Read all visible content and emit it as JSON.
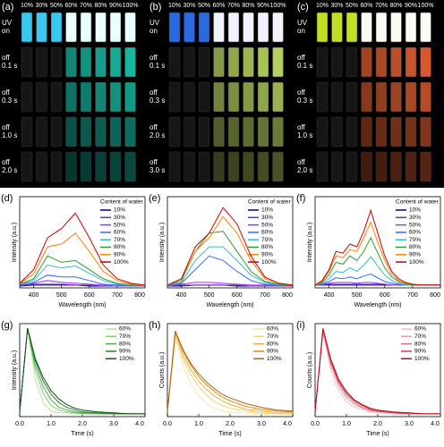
{
  "photo_panels": [
    {
      "label": "(a)",
      "columns": [
        "10%",
        "30%",
        "50%",
        "60%",
        "70%",
        "80%",
        "90%",
        "100%"
      ],
      "rows": [
        [
          "UV",
          "on"
        ],
        [
          "off",
          "0.1 s"
        ],
        [
          "off",
          "0.3 s"
        ],
        [
          "off",
          "1.0 s"
        ],
        [
          "off",
          "2.0 s"
        ]
      ]
    },
    {
      "label": "(b)",
      "columns": [
        "10%",
        "30%",
        "50%",
        "60%",
        "70%",
        "80%",
        "90%",
        "100%"
      ],
      "rows": [
        [
          "UV",
          "on"
        ],
        [
          "off",
          "0.1 s"
        ],
        [
          "off",
          "0.3 s"
        ],
        [
          "off",
          "2.0 s"
        ],
        [
          "off",
          "3.0 s"
        ]
      ]
    },
    {
      "label": "(c)",
      "columns": [
        "10%",
        "30%",
        "50%",
        "60%",
        "70%",
        "80%",
        "90%",
        "100%"
      ],
      "rows": [
        [
          "UV",
          "on"
        ],
        [
          "off",
          "0.1 s"
        ],
        [
          "off",
          "0.3 s"
        ],
        [
          "off",
          "1.0 s"
        ],
        [
          "off",
          "2.0 s"
        ]
      ]
    }
  ],
  "chart_data": [
    {
      "type": "line",
      "panel_label": "(d)",
      "x_label": "Wavelength (nm)",
      "y_label": "Intensity (a.u.)",
      "legend_title": "Content of water",
      "xlim": [
        350,
        800
      ],
      "xticks": [
        400,
        500,
        600,
        700,
        800
      ],
      "ylim": [
        0,
        100
      ],
      "x": [
        350,
        400,
        450,
        500,
        550,
        600,
        650,
        700,
        750,
        800
      ],
      "series": [
        {
          "name": "10%",
          "color": "#000080",
          "values": [
            2,
            3,
            3,
            3,
            3,
            2,
            2,
            2,
            2,
            2
          ]
        },
        {
          "name": "30%",
          "color": "#7030a0",
          "values": [
            3,
            4,
            4,
            4,
            3,
            3,
            2,
            2,
            2,
            2
          ]
        },
        {
          "name": "50%",
          "color": "#9933ff",
          "values": [
            3,
            5,
            8,
            6,
            5,
            4,
            3,
            2,
            2,
            2
          ]
        },
        {
          "name": "60%",
          "color": "#3366ff",
          "values": [
            3,
            6,
            14,
            12,
            12,
            8,
            4,
            3,
            2,
            2
          ]
        },
        {
          "name": "70%",
          "color": "#33bbcc",
          "values": [
            4,
            8,
            25,
            22,
            24,
            16,
            8,
            4,
            3,
            2
          ]
        },
        {
          "name": "80%",
          "color": "#339933",
          "values": [
            4,
            10,
            35,
            28,
            30,
            20,
            10,
            5,
            3,
            2
          ]
        },
        {
          "name": "90%",
          "color": "#ff8000",
          "values": [
            5,
            15,
            45,
            48,
            60,
            40,
            18,
            8,
            4,
            3
          ]
        },
        {
          "name": "100%",
          "color": "#cc0000",
          "values": [
            5,
            20,
            55,
            65,
            82,
            55,
            25,
            10,
            5,
            3
          ]
        }
      ]
    },
    {
      "type": "line",
      "panel_label": "(e)",
      "x_label": "Wavelength (nm)",
      "y_label": "Intensity (a.u.)",
      "legend_title": "Content of water",
      "xlim": [
        350,
        800
      ],
      "xticks": [
        400,
        500,
        600,
        700,
        800
      ],
      "ylim": [
        0,
        100
      ],
      "x": [
        350,
        400,
        450,
        500,
        550,
        600,
        650,
        700,
        750,
        800
      ],
      "series": [
        {
          "name": "10%",
          "color": "#000080",
          "values": [
            2,
            2,
            3,
            3,
            3,
            2,
            2,
            2,
            2,
            2
          ]
        },
        {
          "name": "30%",
          "color": "#7030a0",
          "values": [
            2,
            3,
            3,
            3,
            3,
            3,
            2,
            2,
            2,
            2
          ]
        },
        {
          "name": "50%",
          "color": "#9933ff",
          "values": [
            3,
            4,
            6,
            6,
            5,
            4,
            3,
            3,
            3,
            3
          ]
        },
        {
          "name": "60%",
          "color": "#3366ff",
          "values": [
            3,
            5,
            20,
            35,
            30,
            18,
            8,
            4,
            3,
            3
          ]
        },
        {
          "name": "70%",
          "color": "#33bbcc",
          "values": [
            3,
            6,
            30,
            45,
            45,
            30,
            14,
            6,
            3,
            3
          ]
        },
        {
          "name": "80%",
          "color": "#339933",
          "values": [
            3,
            8,
            40,
            60,
            62,
            40,
            18,
            7,
            4,
            3
          ]
        },
        {
          "name": "90%",
          "color": "#ff8000",
          "values": [
            3,
            10,
            40,
            55,
            78,
            60,
            30,
            10,
            5,
            3
          ]
        },
        {
          "name": "100%",
          "color": "#cc0000",
          "values": [
            3,
            10,
            45,
            60,
            88,
            70,
            35,
            12,
            5,
            3
          ]
        }
      ]
    },
    {
      "type": "line",
      "panel_label": "(f)",
      "x_label": "Wavelength (nm)",
      "y_label": "Intensity (a.u.)",
      "legend_title": "Content of water",
      "xlim": [
        350,
        800
      ],
      "xticks": [
        400,
        500,
        600,
        700,
        800
      ],
      "ylim": [
        0,
        100
      ],
      "x": [
        350,
        375,
        400,
        425,
        450,
        475,
        500,
        525,
        550,
        575,
        600,
        625,
        650,
        675,
        700,
        725,
        750,
        775,
        800
      ],
      "series": [
        {
          "name": "10%",
          "color": "#000080",
          "values": [
            3,
            3,
            3,
            3,
            3,
            3,
            3,
            3,
            3,
            3,
            3,
            3,
            3,
            3,
            3,
            3,
            3,
            3,
            3
          ]
        },
        {
          "name": "30%",
          "color": "#7030a0",
          "values": [
            3,
            3,
            4,
            4,
            4,
            4,
            4,
            4,
            4,
            4,
            4,
            3,
            3,
            3,
            3,
            3,
            3,
            3,
            3
          ]
        },
        {
          "name": "50%",
          "color": "#9933ff",
          "values": [
            3,
            4,
            5,
            6,
            6,
            6,
            5,
            6,
            6,
            5,
            4,
            3,
            3,
            3,
            3,
            3,
            3,
            3,
            3
          ]
        },
        {
          "name": "60%",
          "color": "#3366ff",
          "values": [
            3,
            4,
            7,
            11,
            10,
            12,
            10,
            13,
            15,
            11,
            7,
            5,
            4,
            3,
            3,
            3,
            3,
            3,
            3
          ]
        },
        {
          "name": "70%",
          "color": "#33bbcc",
          "values": [
            3,
            5,
            10,
            18,
            17,
            22,
            18,
            25,
            34,
            24,
            14,
            8,
            5,
            3,
            3,
            3,
            3,
            3,
            3
          ]
        },
        {
          "name": "80%",
          "color": "#339933",
          "values": [
            3,
            6,
            14,
            28,
            26,
            35,
            30,
            40,
            55,
            38,
            22,
            12,
            7,
            4,
            3,
            3,
            3,
            3,
            3
          ]
        },
        {
          "name": "90%",
          "color": "#ff8000",
          "values": [
            3,
            7,
            18,
            35,
            33,
            42,
            40,
            55,
            72,
            50,
            30,
            15,
            8,
            5,
            4,
            3,
            3,
            3,
            3
          ]
        },
        {
          "name": "100%",
          "color": "#cc0000",
          "values": [
            3,
            8,
            20,
            40,
            38,
            48,
            45,
            62,
            85,
            60,
            35,
            18,
            10,
            6,
            4,
            3,
            3,
            3,
            3
          ]
        }
      ]
    },
    {
      "type": "line",
      "panel_label": "(g)",
      "x_label": "Time (s)",
      "y_label": "Intensity (a.u.)",
      "xlim": [
        0,
        4
      ],
      "xticks": [
        {
          "value": 0,
          "label": "0.0"
        },
        {
          "value": 1,
          "label": "1.0"
        },
        {
          "value": 2,
          "label": "2.0"
        },
        {
          "value": 3,
          "label": "3.0"
        },
        {
          "value": 4,
          "label": "4.0"
        }
      ],
      "ylim": [
        0,
        100
      ],
      "x": [
        0,
        0.25,
        0.5,
        0.75,
        1,
        1.25,
        1.5,
        1.75,
        2,
        2.5,
        3,
        3.5,
        4
      ],
      "series": [
        {
          "name": "60%",
          "color": "#b5e6a0",
          "values": [
            5,
            95,
            40,
            15,
            6,
            4,
            4,
            3,
            3,
            3,
            3,
            3,
            3
          ]
        },
        {
          "name": "70%",
          "color": "#7fcf6a",
          "values": [
            5,
            95,
            50,
            25,
            12,
            7,
            5,
            4,
            3,
            3,
            3,
            3,
            3
          ]
        },
        {
          "name": "80%",
          "color": "#4aa84a",
          "values": [
            5,
            95,
            55,
            32,
            18,
            10,
            7,
            5,
            4,
            3,
            3,
            3,
            3
          ]
        },
        {
          "name": "90%",
          "color": "#2a7a2a",
          "values": [
            5,
            95,
            60,
            38,
            24,
            15,
            10,
            7,
            5,
            4,
            3,
            3,
            3
          ]
        },
        {
          "name": "100%",
          "color": "#1a4d1a",
          "values": [
            5,
            95,
            62,
            42,
            28,
            19,
            13,
            9,
            7,
            5,
            4,
            3,
            3
          ]
        }
      ]
    },
    {
      "type": "line",
      "panel_label": "(h)",
      "x_label": "Time (s)",
      "y_label": "Counts (a.u.)",
      "xlim": [
        0,
        4
      ],
      "xticks": [
        {
          "value": 0,
          "label": "0.0"
        },
        {
          "value": 1,
          "label": "1.0"
        },
        {
          "value": 2,
          "label": "2.0"
        },
        {
          "value": 3,
          "label": "3.0"
        },
        {
          "value": 4,
          "label": "4.0"
        }
      ],
      "ylim": [
        0,
        100
      ],
      "x": [
        0,
        0.25,
        0.5,
        0.75,
        1,
        1.25,
        1.5,
        1.75,
        2,
        2.5,
        3,
        3.5,
        4
      ],
      "series": [
        {
          "name": "60%",
          "color": "#fbe5a6",
          "values": [
            5,
            85,
            55,
            35,
            22,
            14,
            9,
            6,
            5,
            4,
            3,
            3,
            3
          ]
        },
        {
          "name": "70%",
          "color": "#f5cf72",
          "values": [
            5,
            88,
            62,
            45,
            32,
            23,
            16,
            12,
            9,
            6,
            4,
            3,
            3
          ]
        },
        {
          "name": "80%",
          "color": "#e9b040",
          "values": [
            5,
            90,
            66,
            50,
            38,
            29,
            22,
            17,
            13,
            8,
            6,
            4,
            4
          ]
        },
        {
          "name": "90%",
          "color": "#d88a1a",
          "values": [
            5,
            92,
            70,
            55,
            43,
            34,
            27,
            21,
            17,
            11,
            8,
            6,
            5
          ]
        },
        {
          "name": "100%",
          "color": "#b86010",
          "values": [
            5,
            92,
            72,
            57,
            46,
            37,
            30,
            24,
            20,
            14,
            10,
            7,
            6
          ]
        }
      ]
    },
    {
      "type": "line",
      "panel_label": "(i)",
      "x_label": "Time (s)",
      "y_label": "Counts (a.u.)",
      "xlim": [
        0,
        4
      ],
      "xticks": [
        {
          "value": 0,
          "label": "0.0"
        },
        {
          "value": 1,
          "label": "1.0"
        },
        {
          "value": 2,
          "label": "2.0"
        },
        {
          "value": 3,
          "label": "3.0"
        },
        {
          "value": 4,
          "label": "4.0"
        }
      ],
      "ylim": [
        0,
        100
      ],
      "x": [
        0,
        0.25,
        0.5,
        0.75,
        1,
        1.25,
        1.5,
        1.75,
        2,
        2.5,
        3,
        3.5,
        4
      ],
      "series": [
        {
          "name": "60%",
          "color": "#f9c0c8",
          "values": [
            5,
            90,
            50,
            28,
            16,
            10,
            7,
            5,
            4,
            3,
            3,
            3,
            3
          ]
        },
        {
          "name": "70%",
          "color": "#f09aa5",
          "values": [
            5,
            92,
            55,
            33,
            20,
            13,
            9,
            6,
            5,
            4,
            3,
            3,
            3
          ]
        },
        {
          "name": "80%",
          "color": "#e07080",
          "values": [
            5,
            93,
            58,
            36,
            23,
            15,
            10,
            7,
            6,
            4,
            3,
            3,
            3
          ]
        },
        {
          "name": "90%",
          "color": "#d04050",
          "values": [
            5,
            94,
            60,
            38,
            25,
            17,
            12,
            8,
            6,
            4,
            3,
            3,
            3
          ]
        },
        {
          "name": "100%",
          "color": "#b01020",
          "values": [
            5,
            95,
            62,
            40,
            27,
            18,
            13,
            9,
            7,
            5,
            4,
            3,
            3
          ]
        }
      ]
    }
  ]
}
